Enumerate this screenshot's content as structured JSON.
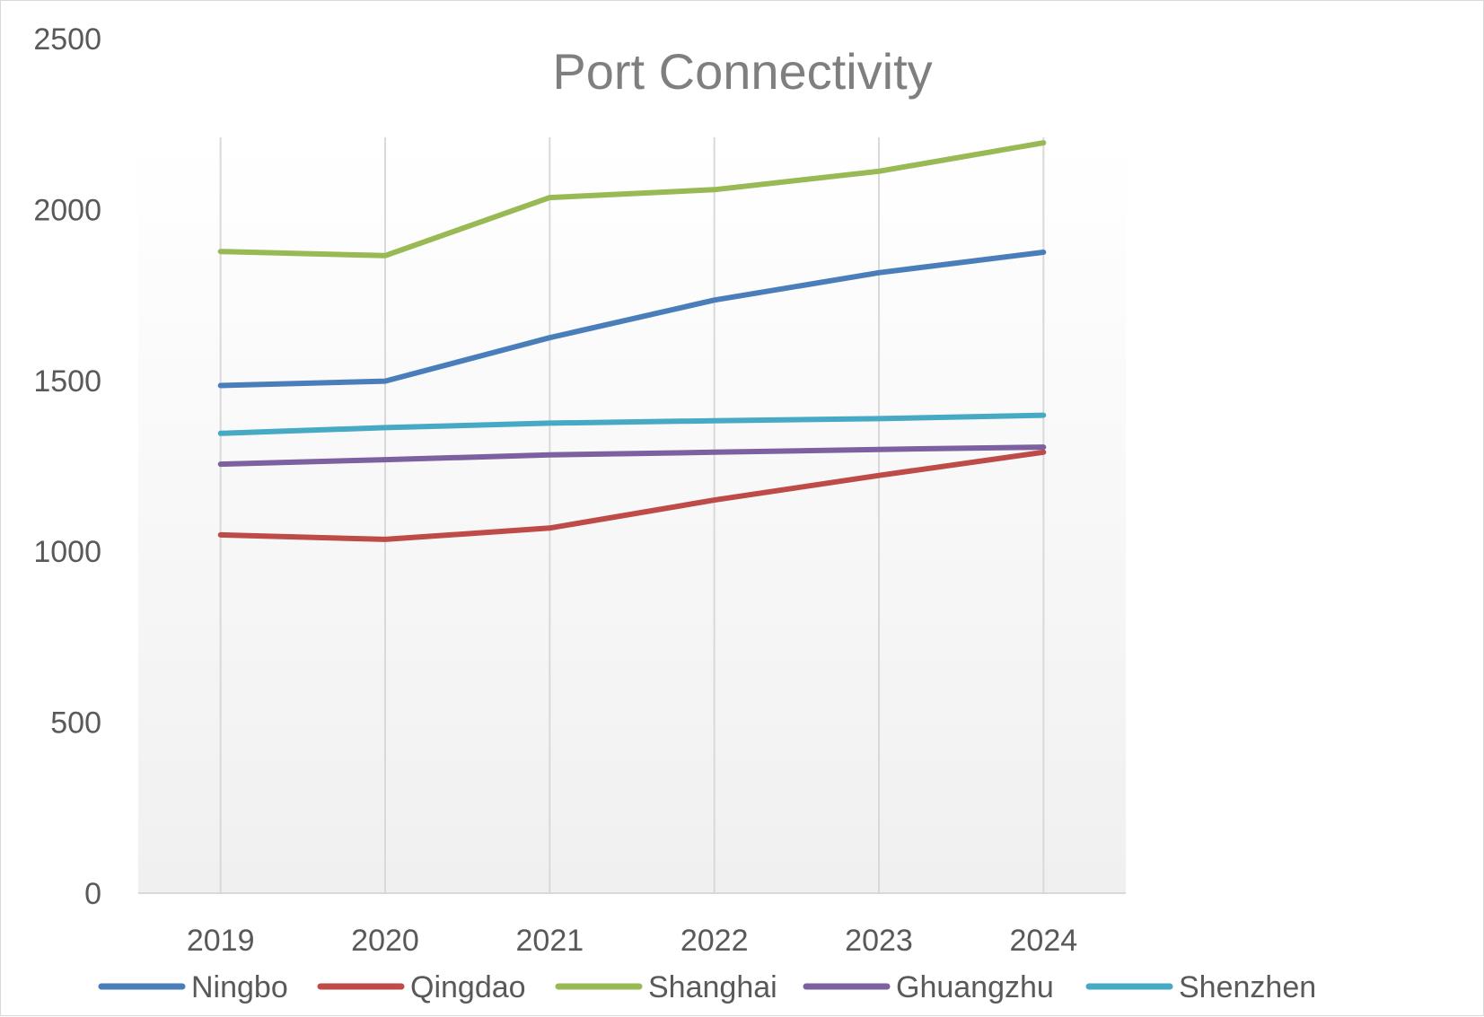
{
  "chart_data": {
    "type": "line",
    "title": "Port Connectivity",
    "xlabel": "",
    "ylabel": "",
    "categories": [
      "2019",
      "2020",
      "2021",
      "2022",
      "2023",
      "2024"
    ],
    "ylim": [
      0,
      2500
    ],
    "yticks": [
      0,
      500,
      1000,
      1500,
      2000,
      2500
    ],
    "grid": "vertical",
    "legend_position": "bottom",
    "series": [
      {
        "name": "Ningbo",
        "color": "#4a7ebb",
        "values": [
          1485,
          1498,
          1625,
          1735,
          1815,
          1875
        ]
      },
      {
        "name": "Qingdao",
        "color": "#be4b48",
        "values": [
          1048,
          1035,
          1068,
          1150,
          1222,
          1290
        ]
      },
      {
        "name": "Shanghai",
        "color": "#98b954",
        "values": [
          1877,
          1865,
          2035,
          2058,
          2112,
          2195
        ]
      },
      {
        "name": "Ghuangzhu",
        "color": "#7d60a0",
        "values": [
          1255,
          1268,
          1282,
          1290,
          1298,
          1305
        ]
      },
      {
        "name": "Shenzhen",
        "color": "#46aac5",
        "values": [
          1345,
          1362,
          1375,
          1382,
          1388,
          1398
        ]
      }
    ]
  }
}
